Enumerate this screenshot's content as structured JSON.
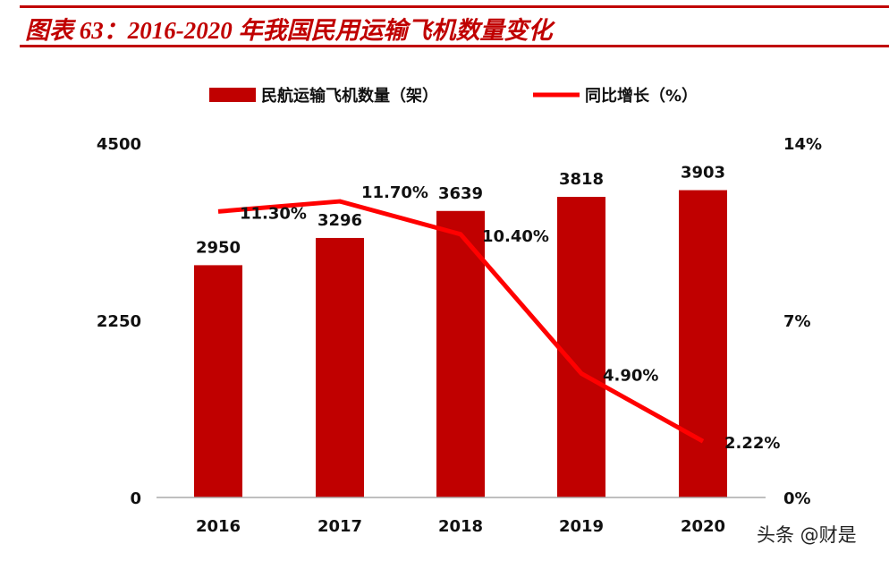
{
  "title": "图表 63：2016-2020 年我国民用运输飞机数量变化",
  "watermark": "头条 @财是",
  "chart_data": {
    "type": "bar+line",
    "categories": [
      "2016",
      "2017",
      "2018",
      "2019",
      "2020"
    ],
    "series": [
      {
        "name": "民航运输飞机数量（架）",
        "type": "bar",
        "axis": "left",
        "values": [
          2950,
          3296,
          3639,
          3818,
          3903
        ],
        "labels": [
          "2950",
          "3296",
          "3639",
          "3818",
          "3903"
        ],
        "color": "#c00000"
      },
      {
        "name": "同比增长（%）",
        "type": "line",
        "axis": "right",
        "values": [
          11.3,
          11.7,
          10.4,
          4.9,
          2.22
        ],
        "labels": [
          "11.30%",
          "11.70%",
          "10.40%",
          "4.90%",
          "2.22%"
        ],
        "color": "#ff0000"
      }
    ],
    "left_axis": {
      "ylim": [
        0,
        4500
      ],
      "ticks": [
        "0",
        "2250",
        "4500"
      ]
    },
    "right_axis": {
      "ylim": [
        0,
        14
      ],
      "ticks": [
        "0%",
        "7%",
        "14%"
      ]
    },
    "legend": "top",
    "grid": false
  }
}
